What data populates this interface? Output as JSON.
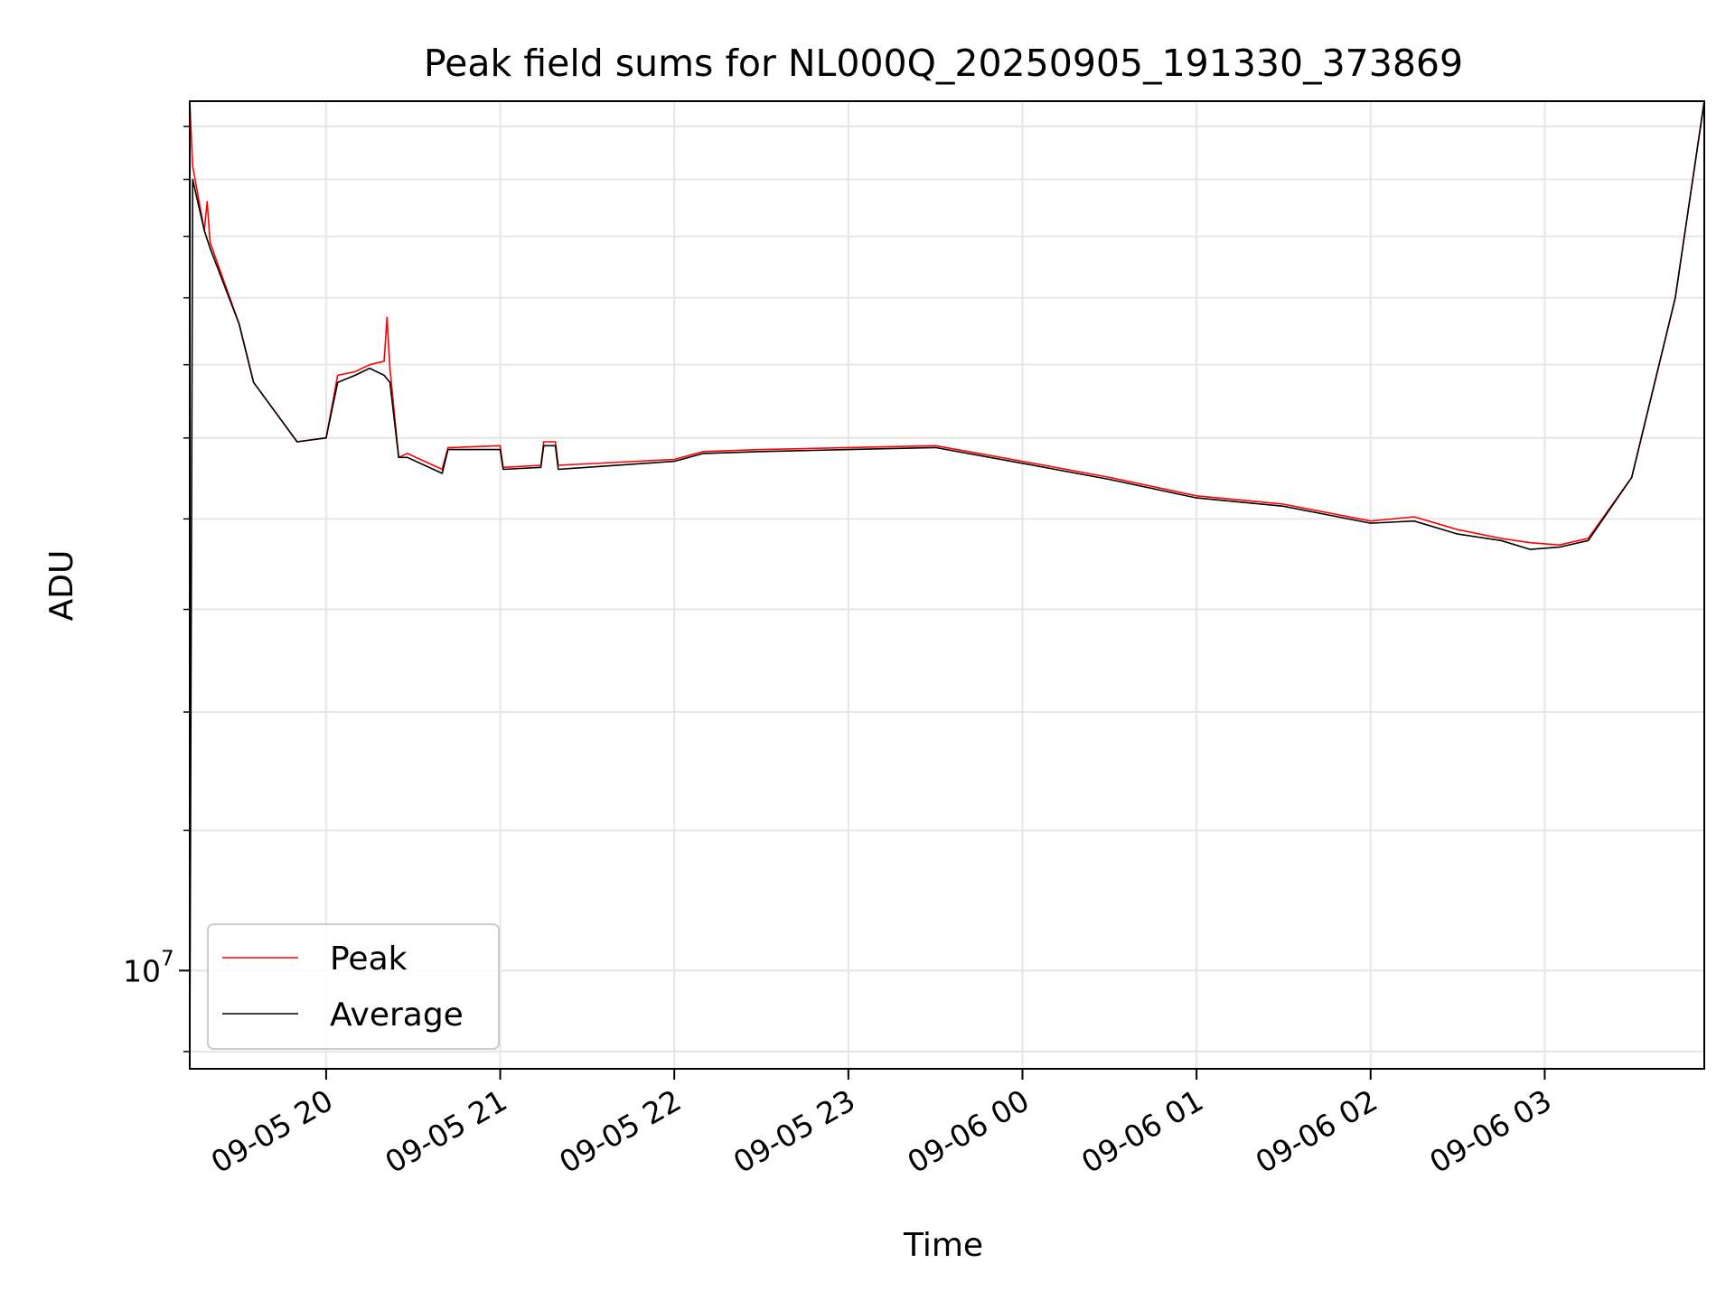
{
  "chart_data": {
    "type": "line",
    "title": "Peak field sums for NL000Q_20250905_191330_373869",
    "xlabel": "Time",
    "ylabel": "ADU",
    "y_scale": "log",
    "xlim": [
      "2025-09-05 19:13",
      "2025-09-06 03:55"
    ],
    "ylim": [
      8800000,
      31000000
    ],
    "x_tick_labels": [
      "09-05 20",
      "09-05 21",
      "09-05 22",
      "09-05 23",
      "09-06 00",
      "09-06 01",
      "09-06 02",
      "09-06 03"
    ],
    "y_tick_label_base": "10",
    "y_tick_label_exp": "7",
    "grid": true,
    "legend_position": "lower-left",
    "series": [
      {
        "name": "Peak",
        "color": "#ff0000",
        "x": [
          "2025-09-05 19:13",
          "2025-09-05 19:14",
          "2025-09-05 19:18",
          "2025-09-05 19:19",
          "2025-09-05 19:20",
          "2025-09-05 19:30",
          "2025-09-05 19:35",
          "2025-09-05 19:50",
          "2025-09-05 20:00",
          "2025-09-05 20:04",
          "2025-09-05 20:10",
          "2025-09-05 20:15",
          "2025-09-05 20:20",
          "2025-09-05 20:21",
          "2025-09-05 20:22",
          "2025-09-05 20:25",
          "2025-09-05 20:28",
          "2025-09-05 20:40",
          "2025-09-05 20:42",
          "2025-09-05 20:43",
          "2025-09-05 21:00",
          "2025-09-05 21:01",
          "2025-09-05 21:14",
          "2025-09-05 21:15",
          "2025-09-05 21:19",
          "2025-09-05 21:20",
          "2025-09-05 22:00",
          "2025-09-05 22:10",
          "2025-09-05 22:30",
          "2025-09-05 23:00",
          "2025-09-05 23:30",
          "2025-09-06 00:00",
          "2025-09-06 00:30",
          "2025-09-06 01:00",
          "2025-09-06 01:30",
          "2025-09-06 02:00",
          "2025-09-06 02:15",
          "2025-09-06 02:30",
          "2025-09-06 02:45",
          "2025-09-06 02:55",
          "2025-09-06 03:05",
          "2025-09-06 03:15",
          "2025-09-06 03:30",
          "2025-09-06 03:45",
          "2025-09-06 03:55"
        ],
        "y": [
          31000000,
          28500000,
          26200000,
          27200000,
          25800000,
          23200000,
          21500000,
          19900000,
          20000000,
          21700000,
          21800000,
          22000000,
          22100000,
          23400000,
          21900000,
          19500000,
          19600000,
          19200000,
          19750000,
          19750000,
          19800000,
          19250000,
          19300000,
          19900000,
          19900000,
          19300000,
          19450000,
          19650000,
          19700000,
          19750000,
          19800000,
          19400000,
          19000000,
          18550000,
          18350000,
          17950000,
          18050000,
          17750000,
          17550000,
          17450000,
          17400000,
          17550000,
          19000000,
          24000000,
          31000000
        ]
      },
      {
        "name": "Average",
        "color": "#000000",
        "x": [
          "2025-09-05 19:13",
          "2025-09-05 19:14",
          "2025-09-05 19:18",
          "2025-09-05 19:20",
          "2025-09-05 19:30",
          "2025-09-05 19:35",
          "2025-09-05 19:50",
          "2025-09-05 20:00",
          "2025-09-05 20:04",
          "2025-09-05 20:10",
          "2025-09-05 20:15",
          "2025-09-05 20:20",
          "2025-09-05 20:22",
          "2025-09-05 20:25",
          "2025-09-05 20:28",
          "2025-09-05 20:40",
          "2025-09-05 20:42",
          "2025-09-05 20:43",
          "2025-09-05 21:00",
          "2025-09-05 21:01",
          "2025-09-05 21:14",
          "2025-09-05 21:15",
          "2025-09-05 21:19",
          "2025-09-05 21:20",
          "2025-09-05 22:00",
          "2025-09-05 22:10",
          "2025-09-05 22:30",
          "2025-09-05 23:00",
          "2025-09-05 23:30",
          "2025-09-06 00:00",
          "2025-09-06 00:30",
          "2025-09-06 01:00",
          "2025-09-06 01:30",
          "2025-09-06 02:00",
          "2025-09-06 02:15",
          "2025-09-06 02:30",
          "2025-09-06 02:45",
          "2025-09-06 02:55",
          "2025-09-06 03:05",
          "2025-09-06 03:15",
          "2025-09-06 03:30",
          "2025-09-06 03:45",
          "2025-09-06 03:55"
        ],
        "y": [
          8800000,
          28000000,
          26200000,
          25600000,
          23200000,
          21500000,
          19900000,
          20000000,
          21500000,
          21700000,
          21900000,
          21700000,
          21500000,
          19500000,
          19500000,
          19100000,
          19700000,
          19700000,
          19700000,
          19200000,
          19250000,
          19800000,
          19800000,
          19200000,
          19400000,
          19600000,
          19650000,
          19700000,
          19750000,
          19350000,
          18950000,
          18500000,
          18300000,
          17900000,
          17950000,
          17650000,
          17500000,
          17300000,
          17350000,
          17500000,
          19000000,
          24000000,
          31000000
        ]
      }
    ]
  }
}
